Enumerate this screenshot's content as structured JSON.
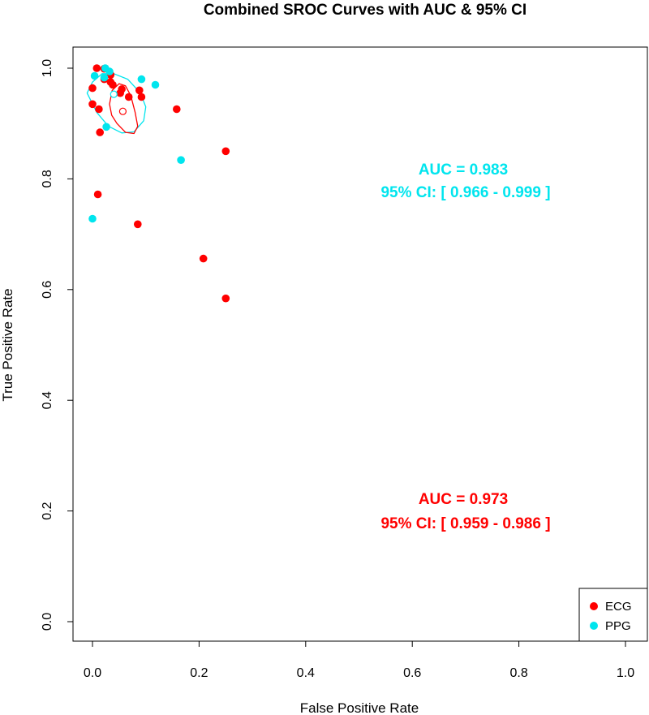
{
  "chart_data": {
    "type": "scatter",
    "title": "Combined SROC Curves with AUC & 95% CI",
    "xlabel": "False Positive Rate",
    "ylabel": "True Positive Rate",
    "xlim": [
      0,
      1
    ],
    "ylim": [
      0,
      1
    ],
    "xticks": [
      "0.0",
      "0.2",
      "0.4",
      "0.6",
      "0.8",
      "1.0"
    ],
    "yticks": [
      "0.0",
      "0.2",
      "0.4",
      "0.6",
      "0.8",
      "1.0"
    ],
    "legend_position": "bottom-right",
    "series": [
      {
        "name": "ECG",
        "color": "#ff0000",
        "points": [
          [
            0.008,
            1.0
          ],
          [
            0.022,
            0.999
          ],
          [
            0.034,
            0.988
          ],
          [
            0.022,
            0.98
          ],
          [
            0.034,
            0.975
          ],
          [
            0.038,
            0.97
          ],
          [
            0.0,
            0.964
          ],
          [
            0.055,
            0.962
          ],
          [
            0.088,
            0.96
          ],
          [
            0.052,
            0.955
          ],
          [
            0.068,
            0.948
          ],
          [
            0.092,
            0.948
          ],
          [
            0.0,
            0.935
          ],
          [
            0.012,
            0.926
          ],
          [
            0.158,
            0.926
          ],
          [
            0.014,
            0.884
          ],
          [
            0.25,
            0.85
          ],
          [
            0.01,
            0.772
          ],
          [
            0.085,
            0.718
          ],
          [
            0.208,
            0.656
          ],
          [
            0.25,
            0.584
          ]
        ],
        "summary_point": [
          0.057,
          0.922
        ],
        "auc_label": "AUC = 0.973",
        "ci_label": "95% CI: [ 0.959 - 0.986 ]"
      },
      {
        "name": "PPG",
        "color": "#00e5ee",
        "points": [
          [
            0.024,
            1.0
          ],
          [
            0.032,
            0.994
          ],
          [
            0.004,
            0.986
          ],
          [
            0.022,
            0.983
          ],
          [
            0.092,
            0.98
          ],
          [
            0.118,
            0.97
          ],
          [
            0.026,
            0.894
          ],
          [
            0.166,
            0.834
          ],
          [
            0.0,
            0.728
          ]
        ],
        "summary_point": [
          0.04,
          0.953
        ],
        "auc_label": "AUC = 0.983",
        "ci_label": "95% CI: [ 0.966 - 0.999 ]"
      }
    ]
  }
}
